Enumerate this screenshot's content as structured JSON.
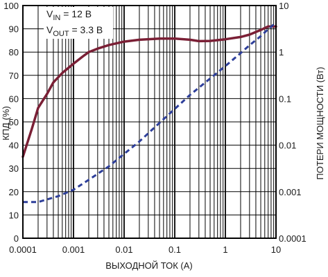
{
  "chart_data": {
    "type": "line",
    "title": "",
    "xlabel": "ВЫХОДНОЙ ТОК (A)",
    "ylabel_left": "КПД (%)",
    "ylabel_right": "ПОТЕРИ МОЩНОСТИ (Вт)",
    "x_scale": "log",
    "xlim": [
      0.0001,
      10
    ],
    "ylim_left": [
      0,
      100
    ],
    "y_right_scale": "log",
    "ylim_right": [
      0.0001,
      10
    ],
    "grid": true,
    "x_ticks": [
      "0.0001",
      "0.001",
      "0.01",
      "0.1",
      "1",
      "10"
    ],
    "y_left_ticks": [
      "0",
      "10",
      "20",
      "30",
      "40",
      "50",
      "60",
      "70",
      "80",
      "90",
      "100"
    ],
    "y_right_ticks": [
      "0.0001",
      "0.001",
      "0.01",
      "0.1",
      "1",
      "10"
    ],
    "annotation": {
      "vin_base": "V",
      "vin_sub": "IN",
      "vin_value": " = 12 В",
      "vout_base": "V",
      "vout_sub": "OUT",
      "vout_value": " = 3.3 В"
    },
    "series": [
      {
        "axis": "left",
        "color": "#7a1f35",
        "style": "solid",
        "points": [
          [
            0.0001,
            35
          ],
          [
            0.00015,
            47
          ],
          [
            0.0002,
            56
          ],
          [
            0.0003,
            62
          ],
          [
            0.0004,
            67
          ],
          [
            0.0006,
            71
          ],
          [
            0.001,
            75
          ],
          [
            0.0015,
            78
          ],
          [
            0.002,
            80
          ],
          [
            0.003,
            81.5
          ],
          [
            0.005,
            83
          ],
          [
            0.01,
            84.5
          ],
          [
            0.02,
            85.3
          ],
          [
            0.05,
            85.8
          ],
          [
            0.1,
            85.8
          ],
          [
            0.2,
            85.3
          ],
          [
            0.3,
            84.7
          ],
          [
            0.5,
            84.8
          ],
          [
            1,
            85.5
          ],
          [
            2,
            86.5
          ],
          [
            3,
            87.5
          ],
          [
            5,
            89.5
          ],
          [
            7,
            91
          ],
          [
            10,
            91
          ]
        ]
      },
      {
        "axis": "right",
        "color": "#2e3f9a",
        "style": "dashed",
        "points": [
          [
            0.0001,
            0.0006
          ],
          [
            0.0002,
            0.0006
          ],
          [
            0.0005,
            0.0008
          ],
          [
            0.001,
            0.0011
          ],
          [
            0.002,
            0.0018
          ],
          [
            0.005,
            0.0035
          ],
          [
            0.01,
            0.0065
          ],
          [
            0.02,
            0.012
          ],
          [
            0.05,
            0.03
          ],
          [
            0.1,
            0.06
          ],
          [
            0.2,
            0.12
          ],
          [
            0.5,
            0.27
          ],
          [
            1,
            0.5
          ],
          [
            2,
            0.95
          ],
          [
            3,
            1.4
          ],
          [
            5,
            2.2
          ],
          [
            7,
            3.1
          ],
          [
            10,
            4.3
          ]
        ]
      }
    ]
  }
}
